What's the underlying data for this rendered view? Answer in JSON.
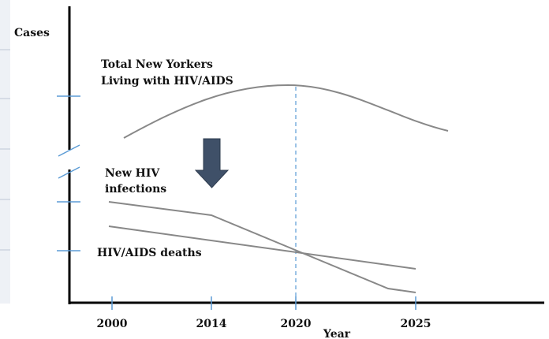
{
  "y_axis_label": "Cases",
  "x_axis_label": "Year",
  "x_ticks": [
    "2000",
    "2014",
    "2020",
    "2025"
  ],
  "labels": {
    "total": [
      "Total New Yorkers",
      "Living with HIV/AIDS"
    ],
    "new_infections": [
      "New HIV",
      "infections"
    ],
    "deaths": "HIV/AIDS deaths"
  }
}
